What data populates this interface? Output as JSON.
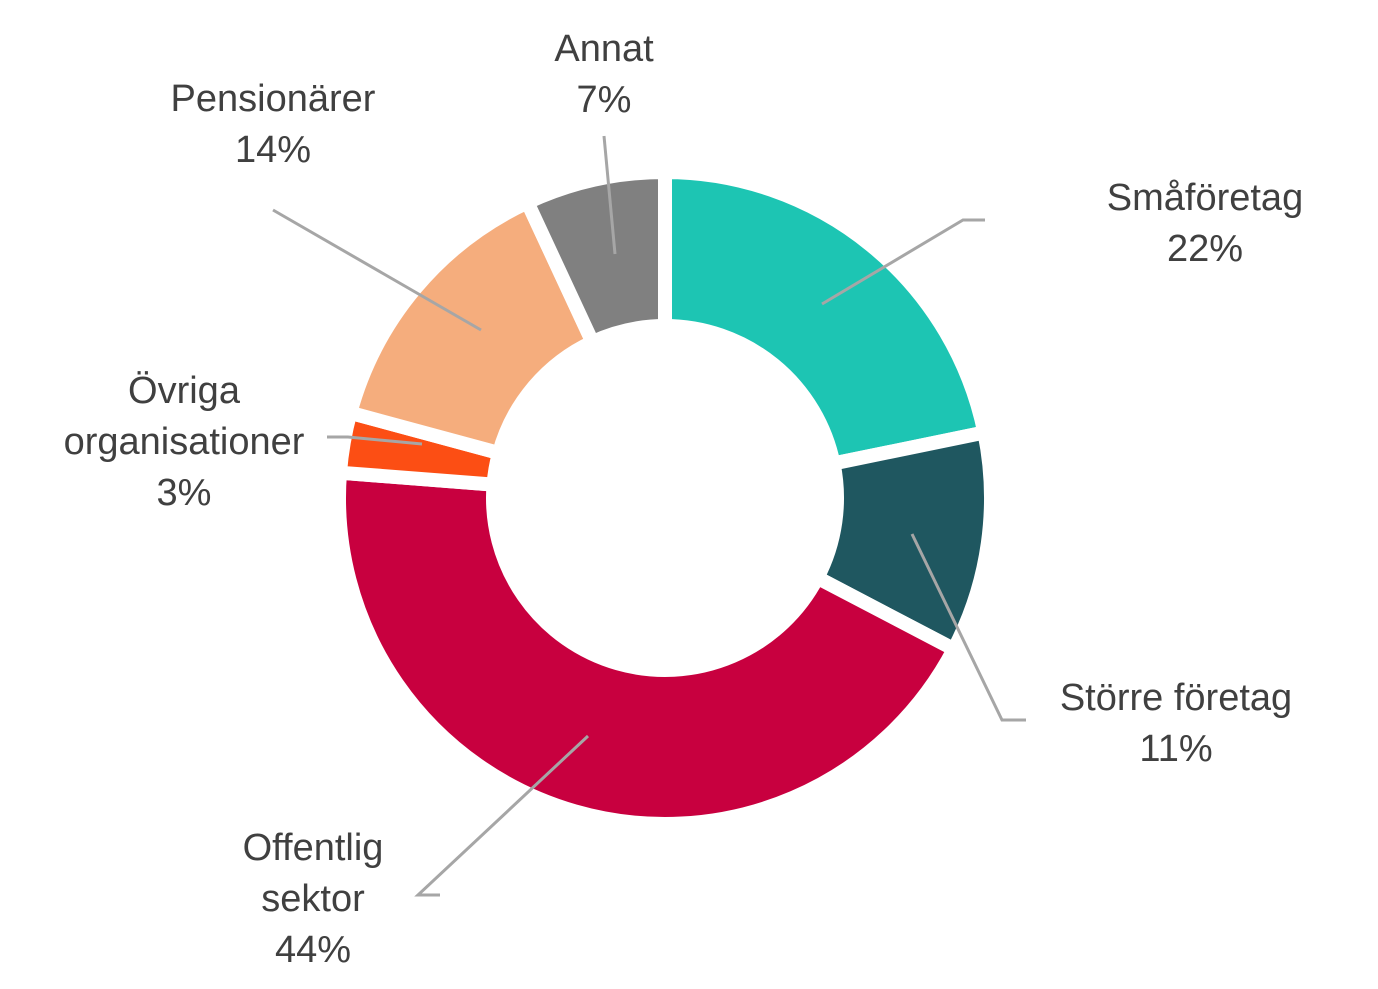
{
  "chart_data": {
    "type": "pie",
    "donut": true,
    "title": "",
    "unit": "%",
    "slices": [
      {
        "name": "Småföretag",
        "label_lines": [
          "Småföretag"
        ],
        "value": 22,
        "value_label": "22%",
        "color": "#1dc5b3"
      },
      {
        "name": "Större företag",
        "label_lines": [
          "Större företag"
        ],
        "value": 11,
        "value_label": "11%",
        "color": "#1f5760"
      },
      {
        "name": "Offentlig sektor",
        "label_lines": [
          "Offentlig",
          "sektor"
        ],
        "value": 44,
        "value_label": "44%",
        "color": "#c8003f"
      },
      {
        "name": "Övriga organisationer",
        "label_lines": [
          "Övriga",
          "organisationer"
        ],
        "value": 3,
        "value_label": "3%",
        "color": "#fc4e14"
      },
      {
        "name": "Pensionärer",
        "label_lines": [
          "Pensionärer"
        ],
        "value": 14,
        "value_label": "14%",
        "color": "#f5ad7d"
      },
      {
        "name": "Annat",
        "label_lines": [
          "Annat"
        ],
        "value": 7,
        "value_label": "7%",
        "color": "#808080"
      }
    ],
    "legend": "none",
    "labels": "outside-with-leader-lines"
  }
}
